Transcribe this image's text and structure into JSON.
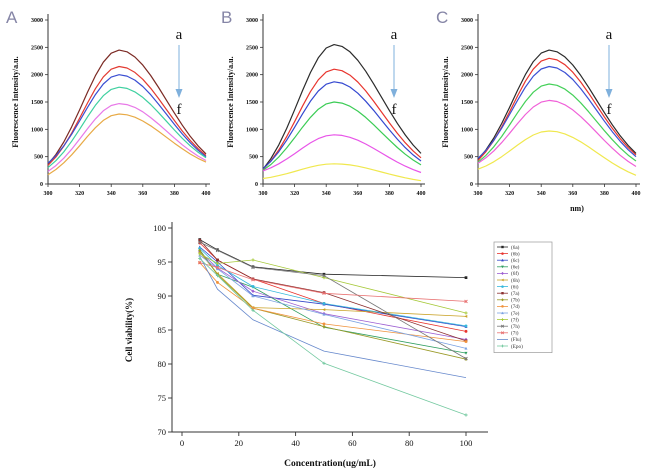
{
  "figure": {
    "background": "#ffffff",
    "panel_letter_color": "#8585a6",
    "arrow_color": "#7fb0dc"
  },
  "chart_data": [
    {
      "kind": "fluorescence",
      "type": "line",
      "panel_label": "A",
      "ylabel": "Fluorescence Intensity/a.u.",
      "xlabel": "",
      "x_range": [
        300,
        400
      ],
      "y_range": [
        0,
        3000
      ],
      "x_ticks": [
        300,
        320,
        340,
        360,
        380,
        400
      ],
      "y_ticks": [
        0,
        500,
        1000,
        1500,
        2000,
        2500,
        3000
      ],
      "peak_x": 345,
      "annotation": {
        "top": "a",
        "bottom": "f",
        "arrow_color": "#7fb0dc"
      },
      "curves": [
        {
          "name": "a",
          "color": "#7b2a24",
          "start": 360,
          "peak": 2450,
          "end": 550
        },
        {
          "name": "b",
          "color": "#e23b32",
          "start": 340,
          "peak": 2150,
          "end": 520
        },
        {
          "name": "c",
          "color": "#3a4ed2",
          "start": 380,
          "peak": 2000,
          "end": 500
        },
        {
          "name": "d",
          "color": "#3fd0a0",
          "start": 300,
          "peak": 1770,
          "end": 480
        },
        {
          "name": "e",
          "color": "#e879e8",
          "start": 230,
          "peak": 1470,
          "end": 430
        },
        {
          "name": "f",
          "color": "#e8aa46",
          "start": 170,
          "peak": 1280,
          "end": 400
        }
      ]
    },
    {
      "kind": "fluorescence",
      "type": "line",
      "panel_label": "B",
      "ylabel": "Fluorescence Intensity/a.u.",
      "xlabel": "",
      "x_range": [
        300,
        400
      ],
      "y_range": [
        0,
        3000
      ],
      "x_ticks": [
        300,
        320,
        340,
        360,
        380,
        400
      ],
      "y_ticks": [
        0,
        500,
        1000,
        1500,
        2000,
        2500,
        3000
      ],
      "peak_x": 345,
      "annotation": {
        "top": "a",
        "bottom": "f",
        "arrow_color": "#7fb0dc"
      },
      "curves": [
        {
          "name": "a",
          "color": "#2b2b2b",
          "start": 270,
          "peak": 2550,
          "end": 560
        },
        {
          "name": "b",
          "color": "#e8352e",
          "start": 265,
          "peak": 2100,
          "end": 480
        },
        {
          "name": "c",
          "color": "#3448d0",
          "start": 280,
          "peak": 1870,
          "end": 420
        },
        {
          "name": "d",
          "color": "#3bcc55",
          "start": 250,
          "peak": 1500,
          "end": 350
        },
        {
          "name": "e",
          "color": "#e855e8",
          "start": 240,
          "peak": 900,
          "end": 210
        },
        {
          "name": "f",
          "color": "#f0e84e",
          "start": 100,
          "peak": 370,
          "end": 60
        }
      ]
    },
    {
      "kind": "fluorescence",
      "type": "line",
      "panel_label": "C",
      "ylabel": "Fluorescence Intensity/a.u.",
      "xlabel": "nm)",
      "x_range": [
        300,
        400
      ],
      "y_range": [
        0,
        3000
      ],
      "x_ticks": [
        300,
        320,
        340,
        360,
        380,
        400
      ],
      "y_ticks": [
        0,
        500,
        1000,
        1500,
        2000,
        2500,
        3000
      ],
      "peak_x": 345,
      "annotation": {
        "top": "a",
        "bottom": "f",
        "arrow_color": "#7fb0dc"
      },
      "curves": [
        {
          "name": "a",
          "color": "#2b2b2b",
          "start": 450,
          "peak": 2450,
          "end": 560
        },
        {
          "name": "b",
          "color": "#e8352e",
          "start": 430,
          "peak": 2300,
          "end": 530
        },
        {
          "name": "c",
          "color": "#3c50d4",
          "start": 470,
          "peak": 2150,
          "end": 500
        },
        {
          "name": "d",
          "color": "#44d058",
          "start": 400,
          "peak": 1830,
          "end": 420
        },
        {
          "name": "e",
          "color": "#f060d8",
          "start": 380,
          "peak": 1530,
          "end": 320
        },
        {
          "name": "f",
          "color": "#f0e84e",
          "start": 270,
          "peak": 970,
          "end": 160
        }
      ]
    },
    {
      "kind": "viability",
      "type": "line",
      "xlabel": "Concentration(ug/mL)",
      "ylabel": "Cell viability(%)",
      "x": [
        6.25,
        12.5,
        25,
        50,
        100
      ],
      "x_ticks": [
        0,
        20,
        40,
        60,
        80,
        100
      ],
      "y_ticks": [
        70,
        75,
        80,
        85,
        90,
        95,
        100
      ],
      "y_range": [
        70,
        100
      ],
      "x_range": [
        -8,
        112
      ],
      "grid": false,
      "legend_position": "right",
      "series": [
        {
          "name": "(6a)",
          "color": "#262626",
          "marker": "sq",
          "values": [
            98.3,
            96.8,
            94.3,
            93.2,
            92.7
          ]
        },
        {
          "name": "(6b)",
          "color": "#e8342e",
          "marker": "ci",
          "values": [
            97.8,
            95.3,
            92.5,
            88.9,
            84.8
          ]
        },
        {
          "name": "(6c)",
          "color": "#3448c8",
          "marker": "tu",
          "values": [
            97.2,
            95.0,
            90.1,
            88.8,
            85.5
          ]
        },
        {
          "name": "(6e)",
          "color": "#2f9e60",
          "marker": "td",
          "values": [
            96.8,
            93.2,
            91.3,
            85.4,
            81.6
          ]
        },
        {
          "name": "(6f)",
          "color": "#9d5fd2",
          "marker": "di",
          "values": [
            96.5,
            94.1,
            90.7,
            87.4,
            83.6
          ]
        },
        {
          "name": "(6h)",
          "color": "#c9a227",
          "marker": "tl",
          "values": [
            96.4,
            93.3,
            88.3,
            88.0,
            87.0
          ]
        },
        {
          "name": "(6i)",
          "color": "#35b8dc",
          "marker": "ci",
          "values": [
            97.0,
            94.5,
            91.4,
            88.9,
            85.6
          ]
        },
        {
          "name": "(7a)",
          "color": "#8c3030",
          "marker": "sq",
          "values": [
            98.2,
            95.3,
            92.5,
            90.5,
            83.4
          ]
        },
        {
          "name": "(7b)",
          "color": "#9a9a28",
          "marker": "di",
          "values": [
            96.7,
            93.1,
            88.2,
            85.5,
            80.7
          ]
        },
        {
          "name": "(7d)",
          "color": "#f0923c",
          "marker": "ci",
          "values": [
            94.9,
            92.0,
            88.2,
            85.9,
            83.3
          ]
        },
        {
          "name": "(7e)",
          "color": "#7ba2e2",
          "marker": "tu",
          "values": [
            96.0,
            94.0,
            90.0,
            87.3,
            82.3
          ]
        },
        {
          "name": "(7f)",
          "color": "#a6c939",
          "marker": "pl",
          "values": [
            96.2,
            94.8,
            95.3,
            92.7,
            87.5
          ]
        },
        {
          "name": "(7h)",
          "color": "#787878",
          "marker": "x",
          "values": [
            97.9,
            96.7,
            94.2,
            93.0,
            80.8
          ]
        },
        {
          "name": "(7i)",
          "color": "#e87070",
          "marker": "x",
          "values": [
            94.9,
            94.2,
            92.4,
            90.4,
            89.2
          ]
        },
        {
          "name": "(Flu)",
          "color": "#6688cc",
          "marker": "none",
          "values": [
            95.8,
            91.0,
            86.5,
            81.9,
            78.0
          ]
        },
        {
          "name": "(Epo)",
          "color": "#74c9a0",
          "marker": "pl",
          "values": [
            95.5,
            93.0,
            87.9,
            80.1,
            72.5
          ]
        }
      ]
    }
  ]
}
